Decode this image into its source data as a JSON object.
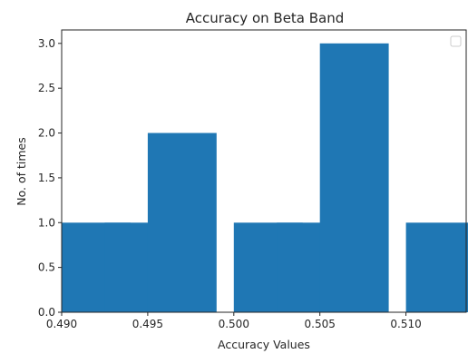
{
  "chart_data": {
    "type": "bar",
    "title": "Accuracy on Beta Band",
    "xlabel": "Accuracy Values",
    "ylabel": "No. of times",
    "xlim": [
      0.49,
      0.5135
    ],
    "ylim": [
      0,
      3.15
    ],
    "xticks": [
      "0.490",
      "0.495",
      "0.500",
      "0.505",
      "0.510"
    ],
    "yticks": [
      "0.0",
      "0.5",
      "1.0",
      "1.5",
      "2.0",
      "2.5",
      "3.0"
    ],
    "bar_width": 0.004,
    "bars": [
      {
        "x": 0.492,
        "count": 1
      },
      {
        "x": 0.4945,
        "count": 1
      },
      {
        "x": 0.497,
        "count": 2
      },
      {
        "x": 0.502,
        "count": 1
      },
      {
        "x": 0.5045,
        "count": 1
      },
      {
        "x": 0.507,
        "count": 3
      },
      {
        "x": 0.512,
        "count": 1
      }
    ],
    "grid": false,
    "legend": "top-right (empty)",
    "color": "#1f77b4"
  }
}
